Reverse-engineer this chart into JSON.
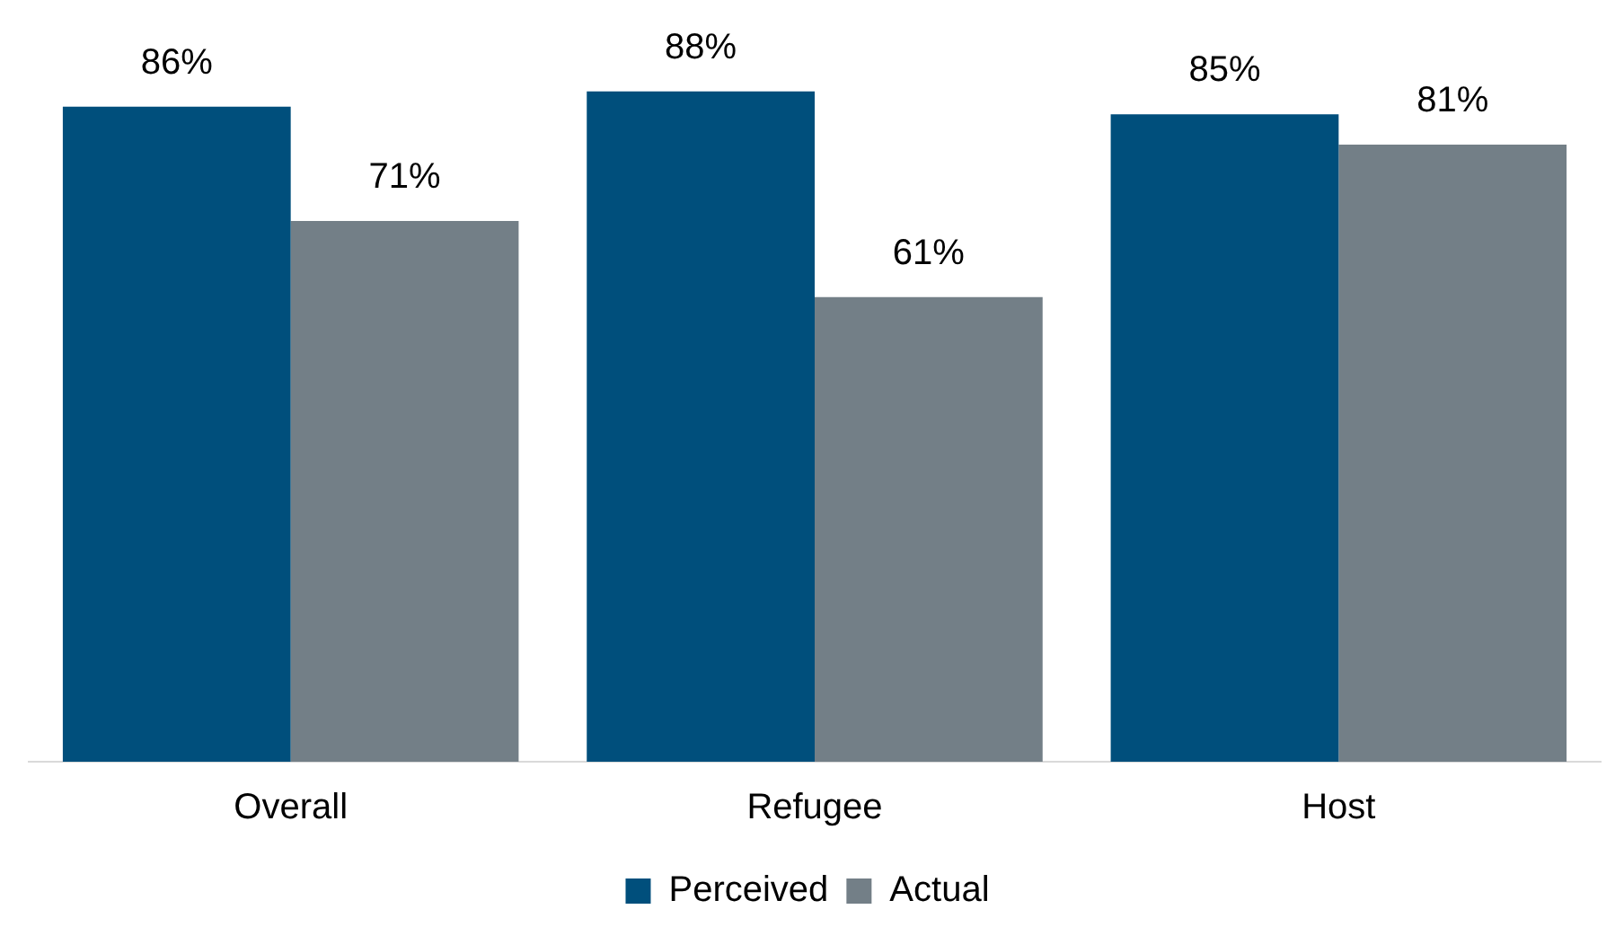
{
  "chart_data": {
    "type": "bar",
    "categories": [
      "Overall",
      "Refugee",
      "Host"
    ],
    "series": [
      {
        "name": "Perceived",
        "color": "#004f7c",
        "values": [
          86,
          88,
          85
        ],
        "value_labels": [
          "86%",
          "88%",
          "85%"
        ]
      },
      {
        "name": "Actual",
        "color": "#737f87",
        "values": [
          71,
          61,
          81
        ],
        "value_labels": [
          "71%",
          "61%",
          "81%"
        ]
      }
    ],
    "legend": "bottom",
    "grid": false
  }
}
